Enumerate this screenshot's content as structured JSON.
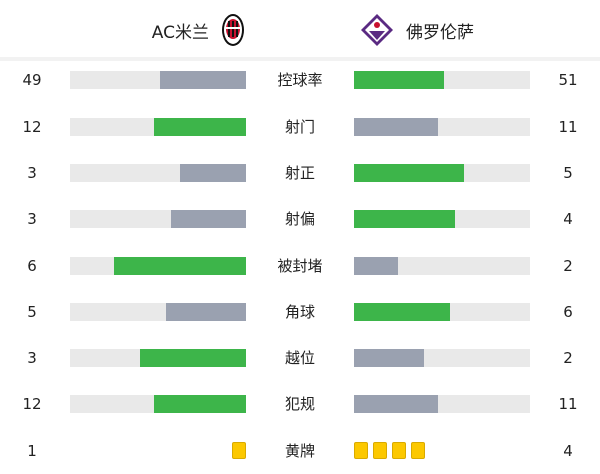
{
  "home": {
    "name": "AC米兰",
    "logo": "ac-milan-crest"
  },
  "away": {
    "name": "佛罗伦萨",
    "logo": "fiorentina-crest"
  },
  "colors": {
    "winner": "#3db54a",
    "loser": "#9aa1b0",
    "track": "#e9e9e9",
    "card": "#fcc800"
  },
  "stats": [
    {
      "label": "控球率",
      "home": "49",
      "away": "51"
    },
    {
      "label": "射门",
      "home": "12",
      "away": "11"
    },
    {
      "label": "射正",
      "home": "3",
      "away": "5"
    },
    {
      "label": "射偏",
      "home": "3",
      "away": "4"
    },
    {
      "label": "被封堵",
      "home": "6",
      "away": "2"
    },
    {
      "label": "角球",
      "home": "5",
      "away": "6"
    },
    {
      "label": "越位",
      "home": "3",
      "away": "2"
    },
    {
      "label": "犯规",
      "home": "12",
      "away": "11"
    }
  ],
  "yellow": {
    "label": "黄牌",
    "home": "1",
    "away": "4"
  }
}
